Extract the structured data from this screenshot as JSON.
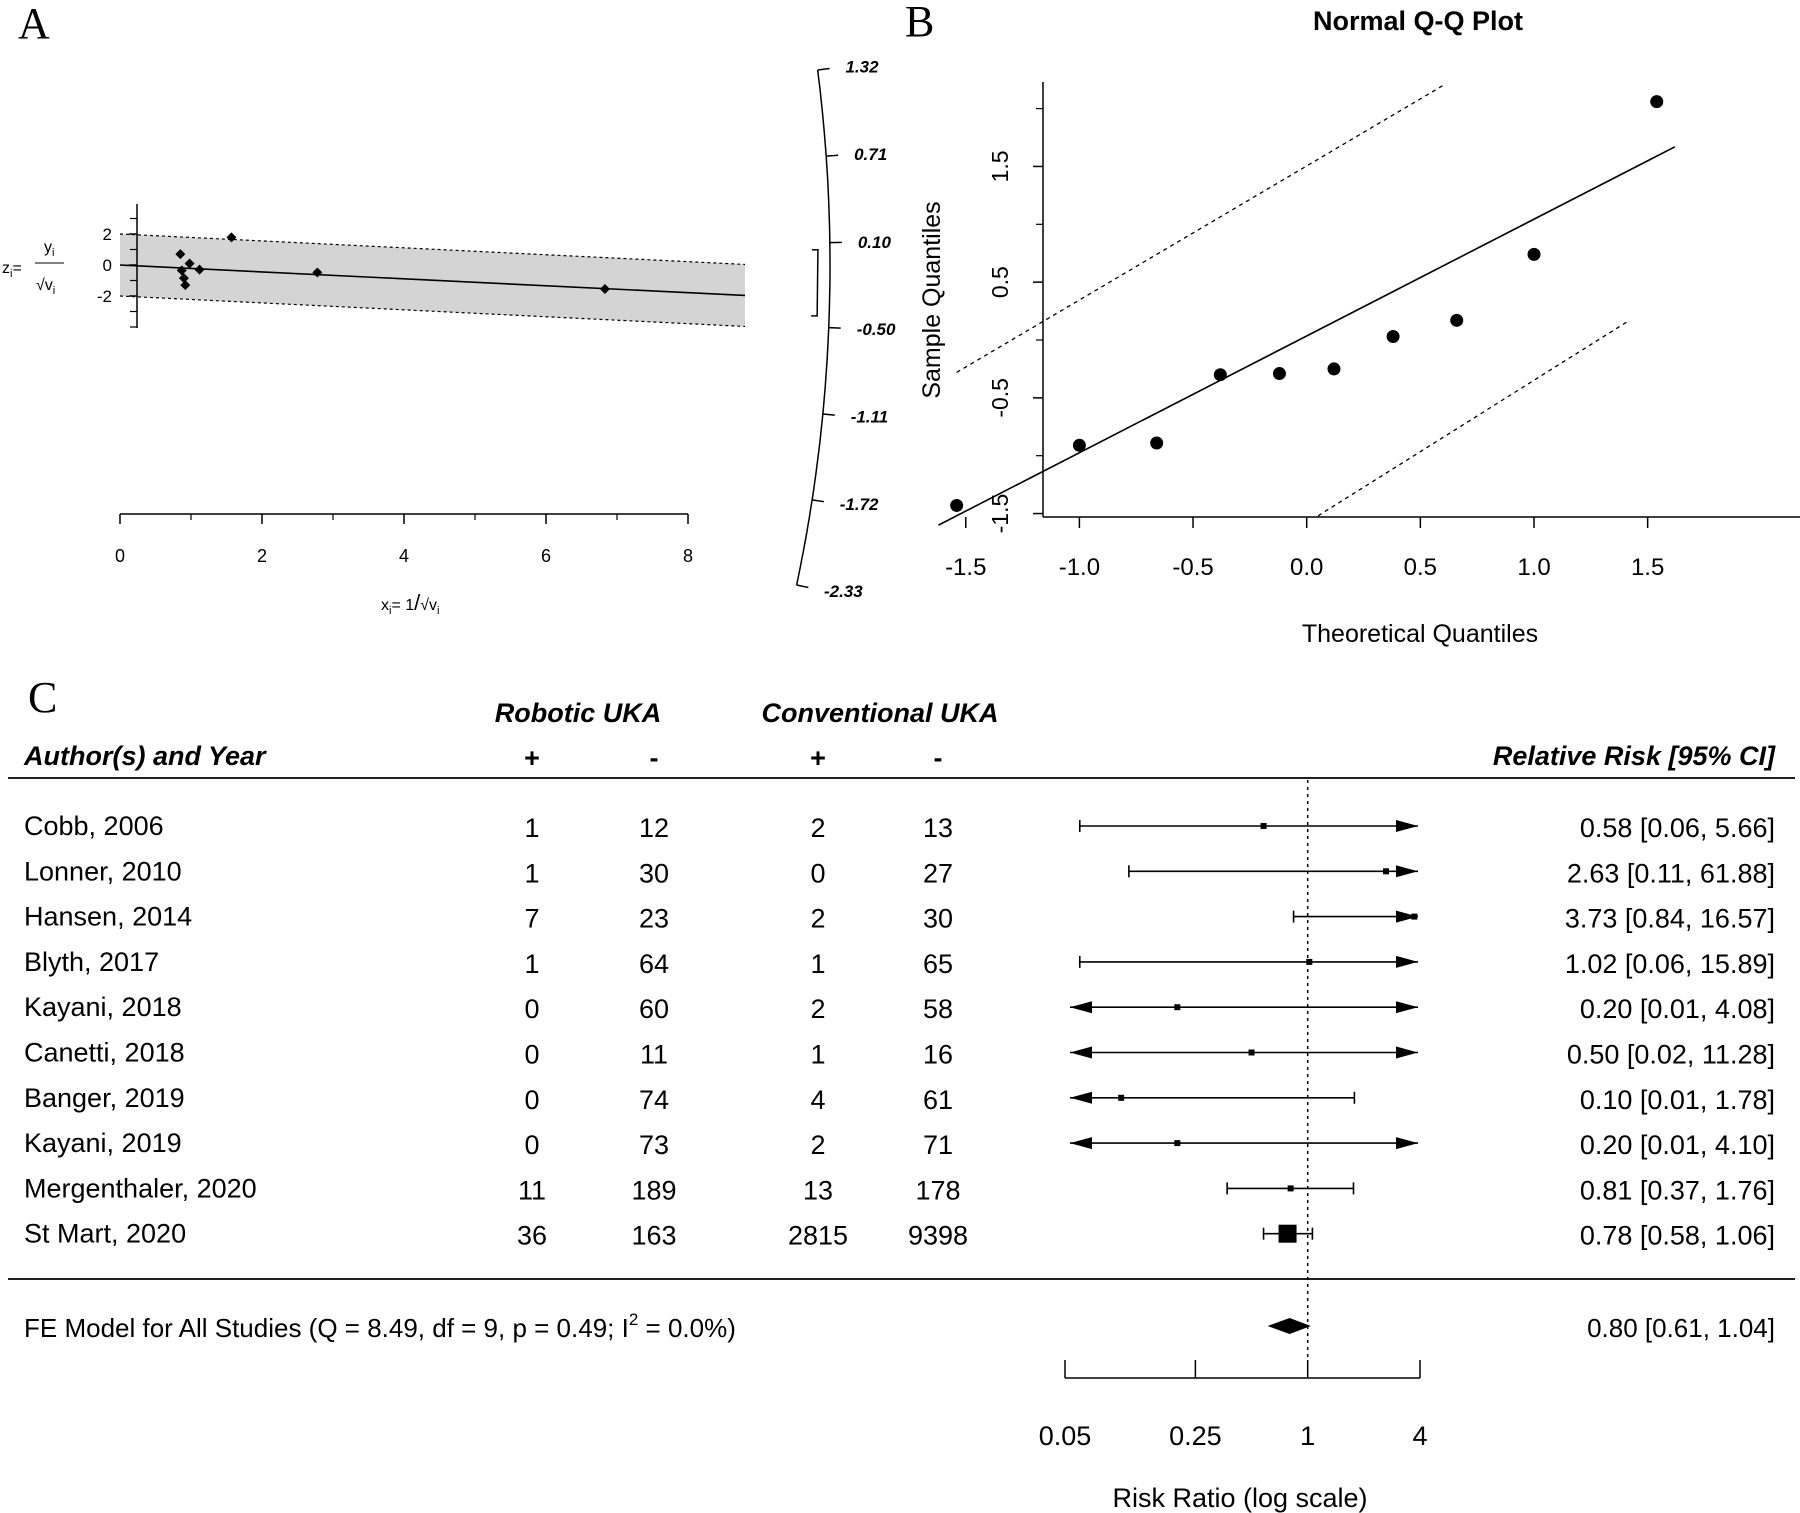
{
  "panel_labels": {
    "a": "A",
    "b": "B",
    "c": "C"
  },
  "chart_data": [
    {
      "panel": "A",
      "type": "scatter",
      "subtype": "radial (Galbraith) plot",
      "ylabel": {
        "lhs": "z",
        "sub": "i",
        "eq": "=",
        "num": "y",
        "num_sub": "i",
        "den": "√v",
        "den_sub": "i"
      },
      "xlabel": {
        "lhs": "x",
        "sub": "i",
        "eq": "= 1",
        "slash": "/",
        "den": "√v",
        "den_sub": "i"
      },
      "x_ticks": [
        "0",
        "2",
        "4",
        "6",
        "8"
      ],
      "y_ticks": [
        "-2",
        "0",
        "2"
      ],
      "xlim": [
        0,
        8
      ],
      "ylim": [
        -4,
        4
      ],
      "band": {
        "lower_intercept": -2,
        "upper_intercept": 2
      },
      "fit_slope": -0.223,
      "points": [
        {
          "x": 0.85,
          "y": 0.7
        },
        {
          "x": 0.87,
          "y": -0.35
        },
        {
          "x": 0.9,
          "y": -0.85
        },
        {
          "x": 0.92,
          "y": -1.3
        },
        {
          "x": 0.98,
          "y": 0.1
        },
        {
          "x": 1.12,
          "y": -0.3
        },
        {
          "x": 1.57,
          "y": 1.78
        },
        {
          "x": 2.78,
          "y": -0.48
        },
        {
          "x": 6.83,
          "y": -1.55
        }
      ],
      "arc_ticks": [
        "1.32",
        "0.71",
        "0.10",
        "-0.50",
        "-1.11",
        "-1.72",
        "-2.33"
      ],
      "arc_values": [
        1.32,
        0.71,
        0.1,
        -0.5,
        -1.11,
        -1.72,
        -2.33
      ],
      "arc_interval": [
        -0.42,
        0.05
      ]
    },
    {
      "panel": "B",
      "type": "scatter",
      "title": "Normal Q-Q Plot",
      "xlabel": "Theoretical Quantiles",
      "ylabel": "Sample Quantiles",
      "x_ticks": [
        "-1.5",
        "-1.0",
        "-0.5",
        "0.0",
        "0.5",
        "1.0",
        "1.5"
      ],
      "y_ticks": [
        "-1.5",
        "-0.5",
        "0.5",
        "1.5"
      ],
      "xlim": [
        -1.62,
        1.62
      ],
      "ylim": [
        -1.52,
        2.2
      ],
      "points": [
        {
          "x": -1.54,
          "y": -1.43
        },
        {
          "x": -1.0,
          "y": -0.91
        },
        {
          "x": -0.66,
          "y": -0.89
        },
        {
          "x": -0.38,
          "y": -0.3
        },
        {
          "x": -0.12,
          "y": -0.29
        },
        {
          "x": 0.12,
          "y": -0.25
        },
        {
          "x": 0.38,
          "y": 0.03
        },
        {
          "x": 0.66,
          "y": 0.17
        },
        {
          "x": 1.0,
          "y": 0.74
        },
        {
          "x": 1.54,
          "y": 2.06
        }
      ],
      "ref_line": [
        [
          -1.62,
          -1.6
        ],
        [
          1.62,
          1.67
        ]
      ],
      "upper_band": [
        [
          -1.54,
          -0.28
        ],
        [
          0.6,
          2.2
        ]
      ],
      "lower_band": [
        [
          0.05,
          -1.52
        ],
        [
          1.42,
          0.17
        ]
      ]
    },
    {
      "panel": "C",
      "type": "table",
      "subtype": "forest plot",
      "group_headers": [
        "Robotic UKA",
        "Conventional UKA"
      ],
      "column_headers": {
        "study": "Author(s) and Year",
        "rob_pos": "+",
        "rob_neg": "-",
        "conv_pos": "+",
        "conv_neg": "-",
        "effect": "Relative Risk [95% CI]"
      },
      "rows": [
        {
          "study": "Cobb, 2006",
          "rob_pos": "1",
          "rob_neg": "12",
          "conv_pos": "2",
          "conv_neg": "13",
          "rr": 0.58,
          "lo": 0.06,
          "hi": 5.66,
          "label": "0.58 [0.06,  5.66]"
        },
        {
          "study": "Lonner, 2010",
          "rob_pos": "1",
          "rob_neg": "30",
          "conv_pos": "0",
          "conv_neg": "27",
          "rr": 2.63,
          "lo": 0.11,
          "hi": 61.88,
          "label": "2.63 [0.11, 61.88]"
        },
        {
          "study": "Hansen, 2014",
          "rob_pos": "7",
          "rob_neg": "23",
          "conv_pos": "2",
          "conv_neg": "30",
          "rr": 3.73,
          "lo": 0.84,
          "hi": 16.57,
          "label": "3.73 [0.84, 16.57]"
        },
        {
          "study": "Blyth, 2017",
          "rob_pos": "1",
          "rob_neg": "64",
          "conv_pos": "1",
          "conv_neg": "65",
          "rr": 1.02,
          "lo": 0.06,
          "hi": 15.89,
          "label": "1.02 [0.06, 15.89]"
        },
        {
          "study": "Kayani, 2018",
          "rob_pos": "0",
          "rob_neg": "60",
          "conv_pos": "2",
          "conv_neg": "58",
          "rr": 0.2,
          "lo": 0.01,
          "hi": 4.08,
          "label": "0.20 [0.01,  4.08]"
        },
        {
          "study": "Canetti, 2018",
          "rob_pos": "0",
          "rob_neg": "11",
          "conv_pos": "1",
          "conv_neg": "16",
          "rr": 0.5,
          "lo": 0.02,
          "hi": 11.28,
          "label": "0.50 [0.02, 11.28]"
        },
        {
          "study": "Banger, 2019",
          "rob_pos": "0",
          "rob_neg": "74",
          "conv_pos": "4",
          "conv_neg": "61",
          "rr": 0.1,
          "lo": 0.01,
          "hi": 1.78,
          "label": "0.10 [0.01,  1.78]"
        },
        {
          "study": "Kayani, 2019",
          "rob_pos": "0",
          "rob_neg": "73",
          "conv_pos": "2",
          "conv_neg": "71",
          "rr": 0.2,
          "lo": 0.01,
          "hi": 4.1,
          "label": "0.20 [0.01,  4.10]"
        },
        {
          "study": "Mergenthaler, 2020",
          "rob_pos": "11",
          "rob_neg": "189",
          "conv_pos": "13",
          "conv_neg": "178",
          "rr": 0.81,
          "lo": 0.37,
          "hi": 1.76,
          "label": "0.81 [0.37,  1.76]"
        },
        {
          "study": "St Mart, 2020",
          "rob_pos": "36",
          "rob_neg": "163",
          "conv_pos": "2815",
          "conv_neg": "9398",
          "rr": 0.78,
          "lo": 0.58,
          "hi": 1.06,
          "label": "0.78 [0.58,  1.06]"
        }
      ],
      "summary": {
        "label_main": "FE Model for All Studies (Q = 8.49, df = 9, p = 0.49; I",
        "label_sup": "2",
        "label_tail": " = 0.0%)",
        "rr": 0.8,
        "lo": 0.61,
        "hi": 1.04,
        "effect_label": "0.80 [0.61,  1.04]"
      },
      "x_ticks": [
        "0.05",
        "0.25",
        "1",
        "4"
      ],
      "x_tick_values": [
        0.05,
        0.25,
        1,
        4
      ],
      "xlim": [
        0.05,
        4
      ],
      "xlabel": "Risk Ratio (log scale)",
      "reference_line": 1
    }
  ]
}
